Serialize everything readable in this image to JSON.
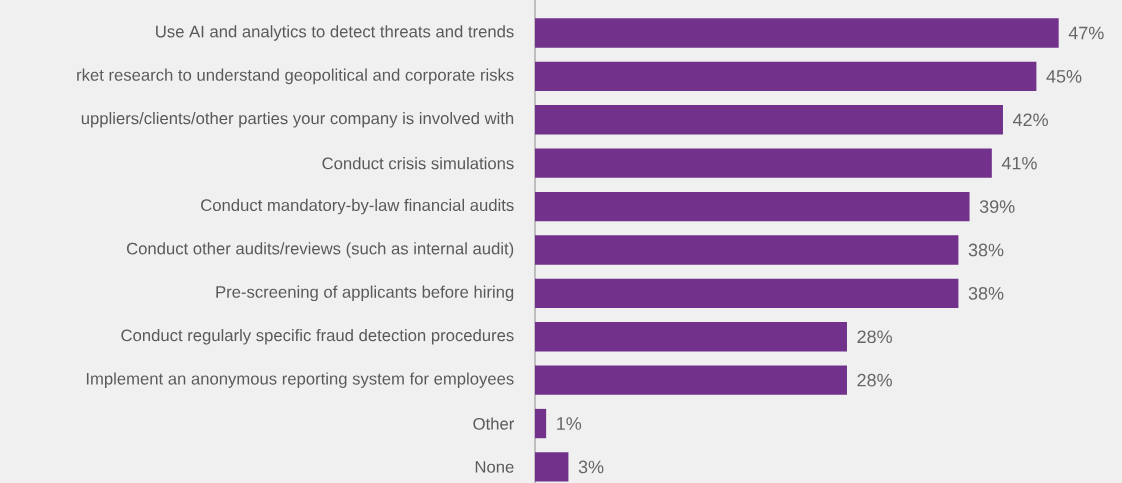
{
  "chart_data": {
    "type": "bar",
    "orientation": "horizontal",
    "categories": [
      "Use AI and analytics to detect threats and trends",
      "rket research to understand geopolitical and corporate risks",
      "uppliers/clients/other parties your company is involved with",
      "Conduct crisis simulations",
      "Conduct mandatory-by-law financial audits",
      "Conduct other audits/reviews (such as internal audit)",
      "Pre-screening of applicants before hiring",
      "Conduct regularly specific fraud detection procedures",
      "Implement an anonymous reporting system for employees",
      "Other",
      "None"
    ],
    "values": [
      47,
      45,
      42,
      41,
      39,
      38,
      38,
      28,
      28,
      1,
      3
    ],
    "value_labels": [
      "47%",
      "45%",
      "42%",
      "41%",
      "39%",
      "38%",
      "38%",
      "28%",
      "28%",
      "1%",
      "3%"
    ],
    "color": "#72328b"
  }
}
